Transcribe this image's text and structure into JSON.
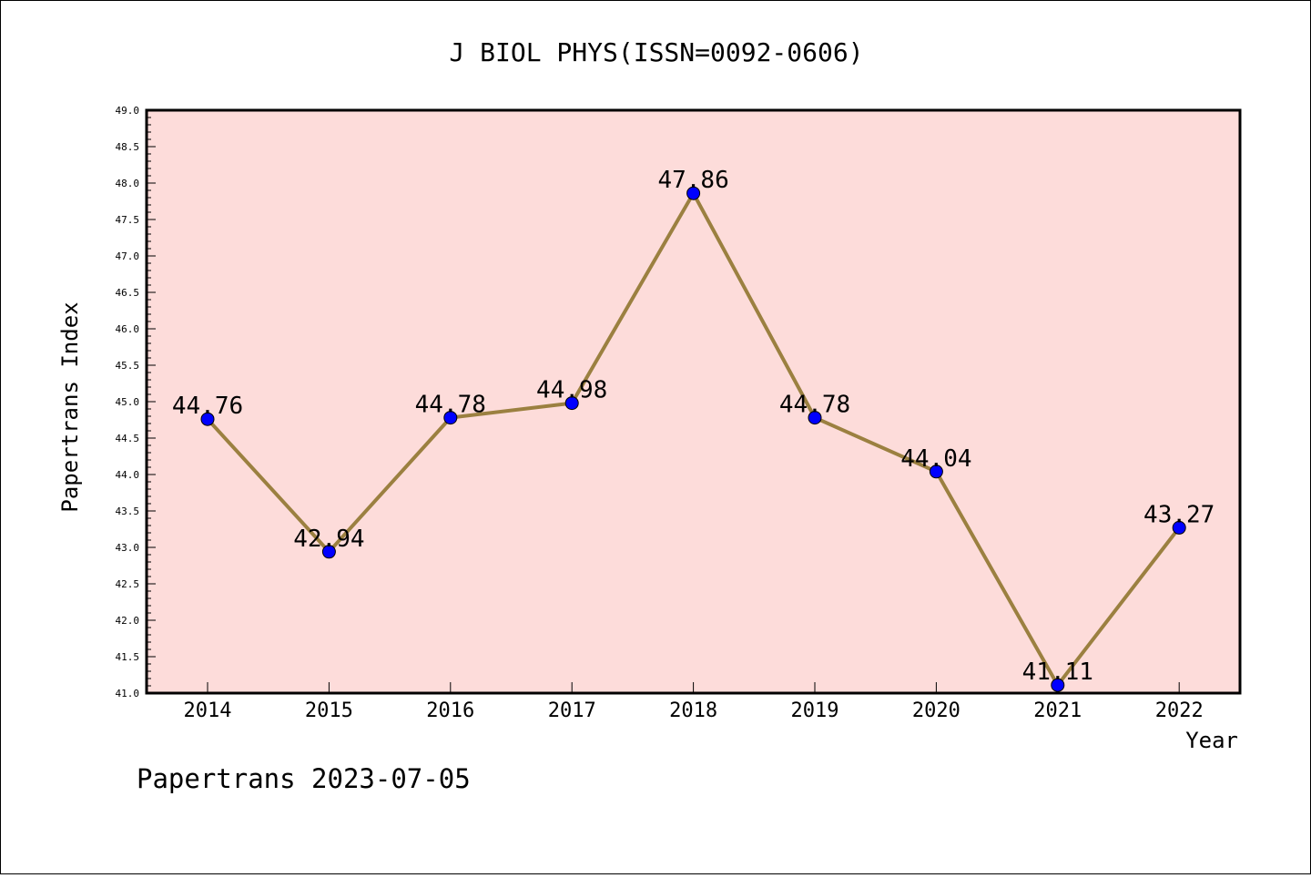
{
  "chart_data": {
    "type": "line",
    "title": "J BIOL PHYS(ISSN=0092-0606)",
    "xlabel": "Year",
    "ylabel": "Papertrans Index",
    "categories": [
      "2014",
      "2015",
      "2016",
      "2017",
      "2018",
      "2019",
      "2020",
      "2021",
      "2022"
    ],
    "series": [
      {
        "values": [
          44.76,
          42.94,
          44.78,
          44.98,
          47.86,
          44.78,
          44.04,
          41.11,
          43.27
        ],
        "labels": [
          "44.76",
          "42.94",
          "44.78",
          "44.98",
          "47.86",
          "44.78",
          "44.04",
          "41.11",
          "43.27"
        ]
      }
    ],
    "ylim": [
      41.0,
      49.0
    ],
    "yticks": [
      "41.0",
      "41.5",
      "42.0",
      "42.5",
      "43.0",
      "43.5",
      "44.0",
      "44.5",
      "45.0",
      "45.5",
      "46.0",
      "46.5",
      "47.0",
      "47.5",
      "48.0",
      "48.5",
      "49.0"
    ],
    "grid": false,
    "colors": {
      "plot_background": "#fddcda",
      "line": "#9b8040",
      "marker": "#0000ff"
    }
  },
  "footer": {
    "text": "Papertrans 2023-07-05"
  }
}
